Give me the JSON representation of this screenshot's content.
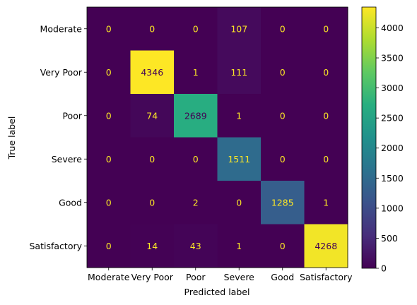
{
  "chart_data": {
    "type": "heatmap",
    "title": "",
    "xlabel": "Predicted label",
    "ylabel": "True label",
    "x_categories": [
      "Moderate",
      "Very Poor",
      "Poor",
      "Severe",
      "Good",
      "Satisfactory"
    ],
    "y_categories": [
      "Moderate",
      "Very Poor",
      "Poor",
      "Severe",
      "Good",
      "Satisfactory"
    ],
    "values": [
      [
        0,
        0,
        0,
        107,
        0,
        0
      ],
      [
        0,
        4346,
        1,
        111,
        0,
        0
      ],
      [
        0,
        74,
        2689,
        1,
        0,
        0
      ],
      [
        0,
        0,
        0,
        1511,
        0,
        0
      ],
      [
        0,
        0,
        2,
        0,
        1285,
        1
      ],
      [
        0,
        14,
        43,
        1,
        0,
        4268
      ]
    ],
    "colormap": "viridis",
    "colorbar": {
      "range": [
        0,
        4346
      ],
      "ticks": [
        "0",
        "500",
        "1000",
        "1500",
        "2000",
        "2500",
        "3000",
        "3500",
        "4000"
      ]
    },
    "text_colors": {
      "low": "#fde725",
      "high": "#440154"
    }
  }
}
